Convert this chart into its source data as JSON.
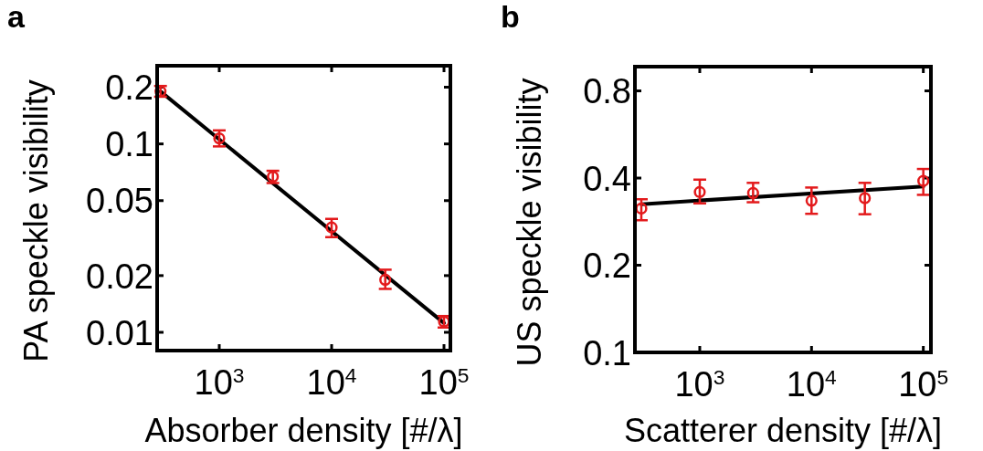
{
  "chart_data": [
    {
      "type": "scatter",
      "title": "a",
      "xlabel": "Absorber density [#/λ]",
      "ylabel": "PA speckle visibility",
      "log": "xy",
      "marker": "circle",
      "xlim": [
        280,
        114000
      ],
      "xticks": [
        {
          "value": 1000,
          "label": "10$^{3}$"
        },
        {
          "value": 10000,
          "label": "10$^{4}$"
        },
        {
          "value": 100000,
          "label": "10$^{5}$"
        }
      ],
      "ylim": [
        0.008,
        0.26
      ],
      "yticks": [
        0.01,
        0.02,
        0.05,
        0.1,
        0.2
      ],
      "series": [
        {
          "color": "#e31a1c",
          "x": [
            300,
            1000,
            3000,
            10000,
            30000,
            100000
          ],
          "values": [
            0.19,
            0.107,
            0.067,
            0.036,
            0.019,
            0.0114
          ],
          "errors": [
            [
              0.178,
              0.203
            ],
            [
              0.097,
              0.118
            ],
            [
              0.062,
              0.072
            ],
            [
              0.032,
              0.04
            ],
            [
              0.017,
              0.0215
            ],
            [
              0.0106,
              0.0122
            ]
          ]
        },
        {
          "type": "line",
          "color": "#000000",
          "line_style": "solid",
          "marker": "none",
          "x": [
            300,
            100000
          ],
          "values": [
            0.19,
            0.0112
          ]
        }
      ]
    },
    {
      "type": "scatter",
      "title": "b",
      "xlabel": "Scatterer density [#/λ]",
      "ylabel": "US speckle visibility",
      "log": "xy",
      "marker": "circle",
      "xlim": [
        263,
        117000
      ],
      "xticks": [
        {
          "value": 1000,
          "label": "10$^{3}$"
        },
        {
          "value": 10000,
          "label": "10$^{4}$"
        },
        {
          "value": 100000,
          "label": "10$^{5}$"
        }
      ],
      "ylim": [
        0.1,
        0.97
      ],
      "yticks": [
        0.1,
        0.2,
        0.4,
        0.8
      ],
      "series": [
        {
          "color": "#e31a1c",
          "x": [
            300,
            1000,
            3000,
            10000,
            30000,
            100000
          ],
          "values": [
            0.314,
            0.358,
            0.355,
            0.334,
            0.341,
            0.391
          ],
          "errors": [
            [
              0.286,
              0.338
            ],
            [
              0.327,
              0.395
            ],
            [
              0.33,
              0.385
            ],
            [
              0.301,
              0.371
            ],
            [
              0.3,
              0.385
            ],
            [
              0.35,
              0.43
            ]
          ]
        },
        {
          "type": "line",
          "color": "#000000",
          "line_style": "solid",
          "marker": "none",
          "x": [
            300,
            100000
          ],
          "values": [
            0.325,
            0.374
          ]
        }
      ]
    }
  ]
}
